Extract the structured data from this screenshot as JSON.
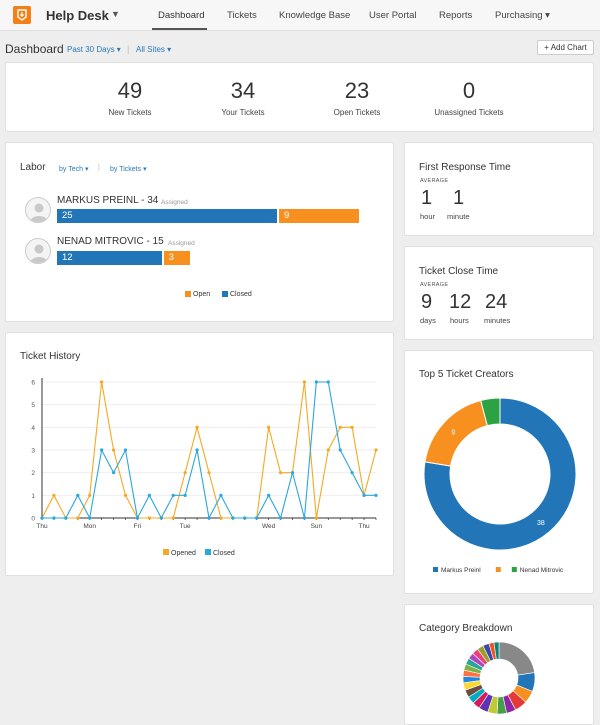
{
  "app": {
    "brand": "Help Desk"
  },
  "nav": {
    "items": [
      {
        "label": "Dashboard",
        "active": true
      },
      {
        "label": "Tickets"
      },
      {
        "label": "Knowledge Base"
      },
      {
        "label": "User Portal"
      },
      {
        "label": "Reports"
      },
      {
        "label": "Purchasing ▾"
      }
    ]
  },
  "dashboard": {
    "title": "Dashboard",
    "period_filter": "Past 30 Days ▾",
    "sites_filter": "All Sites ▾",
    "add_chart_label": "+ Add Chart"
  },
  "stats": [
    {
      "value": "49",
      "label": "New Tickets"
    },
    {
      "value": "34",
      "label": "Your Tickets"
    },
    {
      "value": "23",
      "label": "Open Tickets"
    },
    {
      "value": "0",
      "label": "Unassigned Tickets"
    }
  ],
  "labor": {
    "title": "Labor",
    "filter_tech": "by Tech ▾",
    "filter_tickets": "by Tickets ▾",
    "people": [
      {
        "name": "MARKUS PREINL - 34",
        "assigned_label": "Assigned",
        "closed": 25,
        "open": 9
      },
      {
        "name": "NENAD MITROVIC - 15",
        "assigned_label": "Assigned",
        "closed": 12,
        "open": 3
      }
    ],
    "legend": {
      "open": "Open",
      "closed": "Closed"
    },
    "colors": {
      "open": "#f7901e",
      "closed": "#2276b8"
    }
  },
  "first_response": {
    "title": "First Response Time",
    "avg_label": "AVERAGE",
    "parts": [
      {
        "value": "1",
        "unit": "hour"
      },
      {
        "value": "1",
        "unit": "minute"
      }
    ]
  },
  "close_time": {
    "title": "Ticket Close Time",
    "avg_label": "AVERAGE",
    "parts": [
      {
        "value": "9",
        "unit": "days"
      },
      {
        "value": "12",
        "unit": "hours"
      },
      {
        "value": "24",
        "unit": "minutes"
      }
    ]
  },
  "top_creators": {
    "title": "Top 5 Ticket Creators"
  },
  "category": {
    "title": "Category Breakdown"
  },
  "chart_data": [
    {
      "type": "line",
      "title": "Ticket History",
      "x_tick_labels": [
        "Thu",
        "Mon",
        "Fri",
        "Tue",
        "Wed",
        "Sun",
        "Thu"
      ],
      "x_tick_positions": [
        0,
        4,
        8,
        12,
        19,
        23,
        27
      ],
      "y_ticks": [
        0,
        1,
        2,
        3,
        4,
        5,
        6
      ],
      "ylim": [
        0,
        6
      ],
      "series": [
        {
          "name": "Opened",
          "color": "#f7a823",
          "values": [
            0,
            1,
            0,
            0,
            1,
            6,
            3,
            1,
            0,
            0,
            0,
            0,
            2,
            4,
            2,
            0,
            0,
            0,
            0,
            4,
            2,
            2,
            6,
            0,
            3,
            4,
            4,
            1,
            3
          ]
        },
        {
          "name": "Closed",
          "color": "#29a7de",
          "values": [
            0,
            0,
            0,
            1,
            0,
            3,
            2,
            3,
            0,
            1,
            0,
            1,
            1,
            3,
            0,
            1,
            0,
            0,
            0,
            1,
            0,
            2,
            0,
            6,
            6,
            3,
            2,
            1,
            1
          ]
        }
      ],
      "legend_position": "bottom"
    },
    {
      "type": "pie",
      "title": "Top 5 Ticket Creators",
      "donut": true,
      "slices": [
        {
          "name": "Markus Preinl",
          "value": 38,
          "color": "#2276b8"
        },
        {
          "name": "",
          "value": 9,
          "color": "#f7901e"
        },
        {
          "name": "Nenad Mitrovic",
          "value": 2,
          "color": "#2ca243"
        }
      ],
      "legend_position": "bottom"
    },
    {
      "type": "pie",
      "title": "Category Breakdown",
      "donut": true,
      "slice_colors": [
        "#888888",
        "#2276b8",
        "#f7901e",
        "#e53935",
        "#8e24aa",
        "#43a047",
        "#c0ca33",
        "#5e35b1",
        "#d81b60",
        "#00acc1",
        "#6d4c41",
        "#fdd835",
        "#1e88e5",
        "#ff7043",
        "#7cb342",
        "#26a69a",
        "#ab47bc",
        "#ec407a",
        "#9e9d24",
        "#3949ab",
        "#f4511e",
        "#00897b"
      ]
    }
  ]
}
